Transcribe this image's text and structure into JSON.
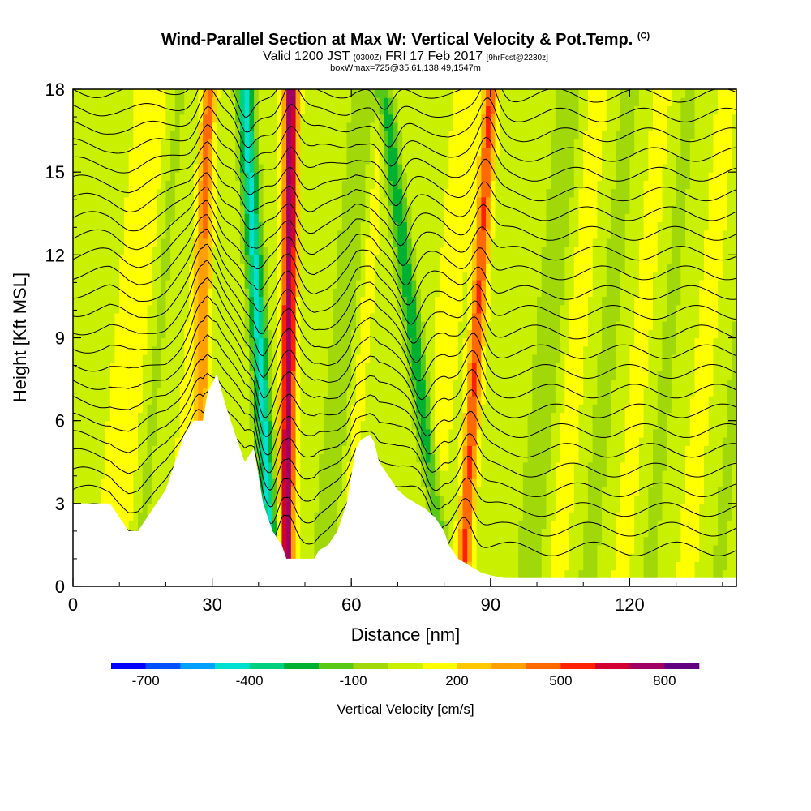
{
  "title": "Wind-Parallel Section at Max W: Vertical Velocity & Pot.Temp.",
  "title_mark": "(C)",
  "subtitle_valid": "Valid 1200 JST",
  "subtitle_utc": "(0300Z)",
  "subtitle_date": "FRI 17 Feb 2017",
  "subtitle_fcst": "[9hrFcst@2230z]",
  "subtitle_box": "boxWmax=725@35.61,138.49,1547m",
  "chart_data": {
    "type": "heatmap",
    "xlabel": "Distance [nm]",
    "ylabel": "Height [Kft MSL]",
    "xlim": [
      0,
      143
    ],
    "ylim": [
      0,
      18
    ],
    "x_ticks": [
      "0",
      "30",
      "60",
      "90",
      "120"
    ],
    "y_ticks": [
      "0",
      "3",
      "6",
      "9",
      "12",
      "15",
      "18"
    ],
    "colorbar_label": "Vertical Velocity [cm/s]",
    "colorbar_ticks": [
      "-700",
      "-400",
      "-100",
      "200",
      "500",
      "800"
    ],
    "colorbar_levels": [
      -700,
      -600,
      -500,
      -400,
      -300,
      -200,
      -100,
      0,
      100,
      200,
      300,
      400,
      500,
      600,
      700,
      800
    ],
    "colorbar_colors": [
      "#0000ff",
      "#0050ff",
      "#00a0ff",
      "#00e0d0",
      "#00d080",
      "#00b030",
      "#58c818",
      "#a0d80a",
      "#c8f000",
      "#ffff00",
      "#ffc800",
      "#ffa000",
      "#ff6a00",
      "#ff2000",
      "#d00030",
      "#a00060",
      "#600080"
    ],
    "updrafts": [
      {
        "x_bottom": 46,
        "x_top": 47,
        "peak": 725
      },
      {
        "x_bottom": 84,
        "x_top": 90,
        "peak": 450
      },
      {
        "x_bottom": 27,
        "x_top": 29,
        "peak": 300
      }
    ],
    "downdrafts": [
      {
        "x_bottom": 43,
        "x_top": 37,
        "peak": -500
      },
      {
        "x_bottom": 80,
        "x_top": 67,
        "peak": -350
      }
    ],
    "terrain": [
      [
        0,
        3
      ],
      [
        8,
        3
      ],
      [
        10,
        2.5
      ],
      [
        12,
        2
      ],
      [
        14,
        2
      ],
      [
        16,
        2.5
      ],
      [
        18,
        3
      ],
      [
        20,
        3.5
      ],
      [
        22,
        4.5
      ],
      [
        24,
        5.5
      ],
      [
        26,
        6
      ],
      [
        28,
        6
      ],
      [
        29,
        7
      ],
      [
        31,
        7.7
      ],
      [
        33,
        6.5
      ],
      [
        35,
        5.5
      ],
      [
        37,
        4.5
      ],
      [
        39,
        5
      ],
      [
        40,
        4
      ],
      [
        41,
        3
      ],
      [
        42,
        2.5
      ],
      [
        43,
        2
      ],
      [
        45,
        1.5
      ],
      [
        46,
        1
      ],
      [
        52,
        1
      ],
      [
        53,
        1.3
      ],
      [
        55,
        1.5
      ],
      [
        57,
        2
      ],
      [
        59,
        3
      ],
      [
        60,
        4
      ],
      [
        61,
        5
      ],
      [
        62,
        5.3
      ],
      [
        64,
        5.5
      ],
      [
        65,
        5.2
      ],
      [
        66,
        4.5
      ],
      [
        68,
        4
      ],
      [
        70,
        3.5
      ],
      [
        72,
        3.2
      ],
      [
        74,
        3
      ],
      [
        76,
        2.8
      ],
      [
        78,
        2.5
      ],
      [
        80,
        2
      ],
      [
        81,
        1.5
      ],
      [
        83,
        1
      ],
      [
        86,
        0.7
      ],
      [
        88,
        0.5
      ],
      [
        90,
        0.4
      ],
      [
        93,
        0.3
      ],
      [
        143,
        0.3
      ]
    ],
    "isentropes": {
      "count": 24,
      "base_kft": 1.2,
      "spacing_kft": 0.72
    }
  }
}
